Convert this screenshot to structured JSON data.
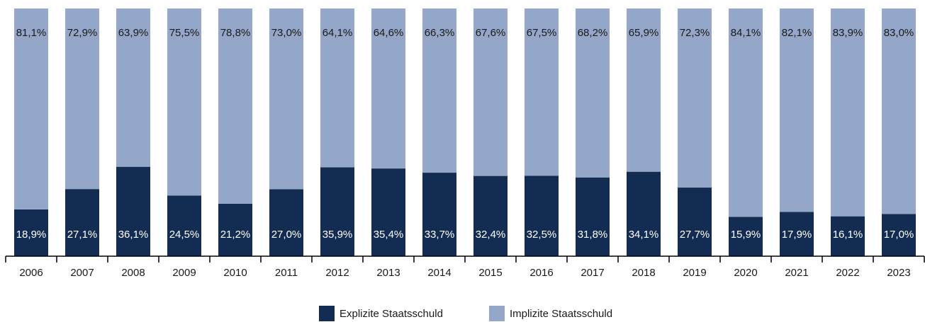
{
  "chart_data": {
    "type": "stacked_bar",
    "categories": [
      "2006",
      "2007",
      "2008",
      "2009",
      "2010",
      "2011",
      "2012",
      "2013",
      "2014",
      "2015",
      "2016",
      "2017",
      "2018",
      "2019",
      "2020",
      "2021",
      "2022",
      "2023"
    ],
    "series": [
      {
        "name": "Explizite Staatsschuld",
        "color": "#132d52",
        "values": [
          18.9,
          27.1,
          36.1,
          24.5,
          21.2,
          27.0,
          35.9,
          35.4,
          33.7,
          32.4,
          32.5,
          31.8,
          34.1,
          27.7,
          15.9,
          17.9,
          16.1,
          17.0
        ],
        "value_labels": [
          "18,9%",
          "27,1%",
          "36,1%",
          "24,5%",
          "21,2%",
          "27,0%",
          "35,9%",
          "35,4%",
          "33,7%",
          "32,4%",
          "32,5%",
          "31,8%",
          "34,1%",
          "27,7%",
          "15,9%",
          "17,9%",
          "16,1%",
          "17,0%"
        ]
      },
      {
        "name": "Implizite Staatsschuld",
        "color": "#94a7c9",
        "values": [
          81.1,
          72.9,
          63.9,
          75.5,
          78.8,
          73.0,
          64.1,
          64.6,
          66.3,
          67.6,
          67.5,
          68.2,
          65.9,
          72.3,
          84.1,
          82.1,
          83.9,
          83.0
        ],
        "value_labels": [
          "81,1%",
          "72,9%",
          "63,9%",
          "75,5%",
          "78,8%",
          "73,0%",
          "64,1%",
          "64,6%",
          "66,3%",
          "67,6%",
          "67,5%",
          "68,2%",
          "65,9%",
          "72,3%",
          "84,1%",
          "82,1%",
          "83,9%",
          "83,0%"
        ]
      }
    ],
    "legend": "bottom"
  }
}
